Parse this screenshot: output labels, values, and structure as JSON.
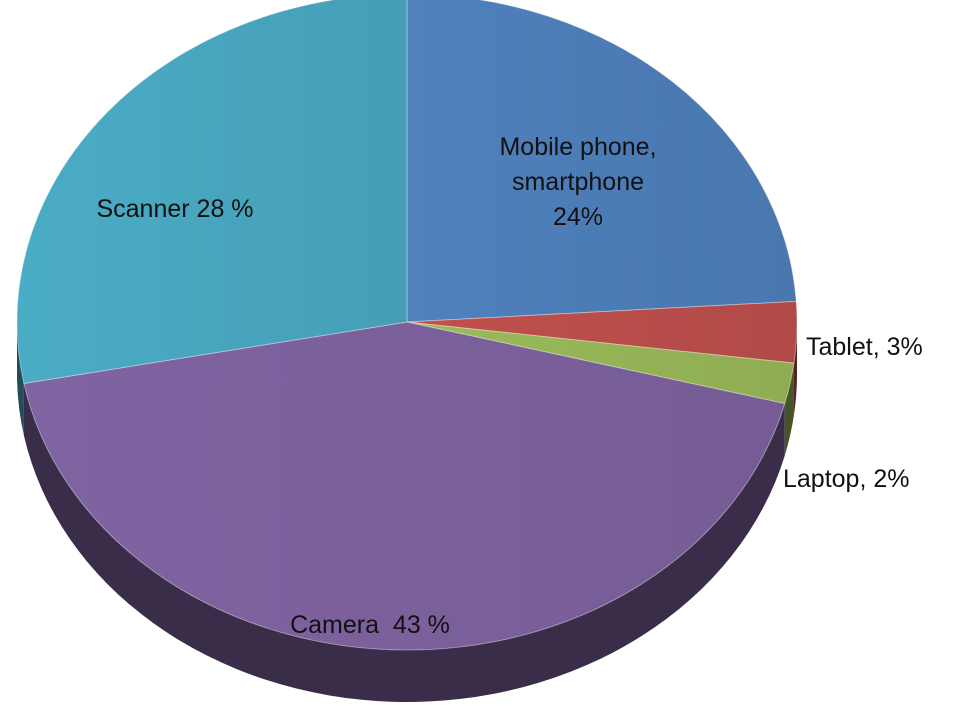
{
  "chart_data": {
    "type": "pie",
    "categories": [
      "Mobile phone,\nsmartphone\n24%",
      "Tablet, 3%",
      "Laptop, 2%",
      "Camera  43 %",
      "Scanner 28 %"
    ],
    "values": [
      24,
      3,
      2,
      43,
      28
    ],
    "colors": [
      "#4f81bd",
      "#c0504d",
      "#9bbb59",
      "#8064a2",
      "#4bacc6"
    ],
    "three_d": true
  }
}
